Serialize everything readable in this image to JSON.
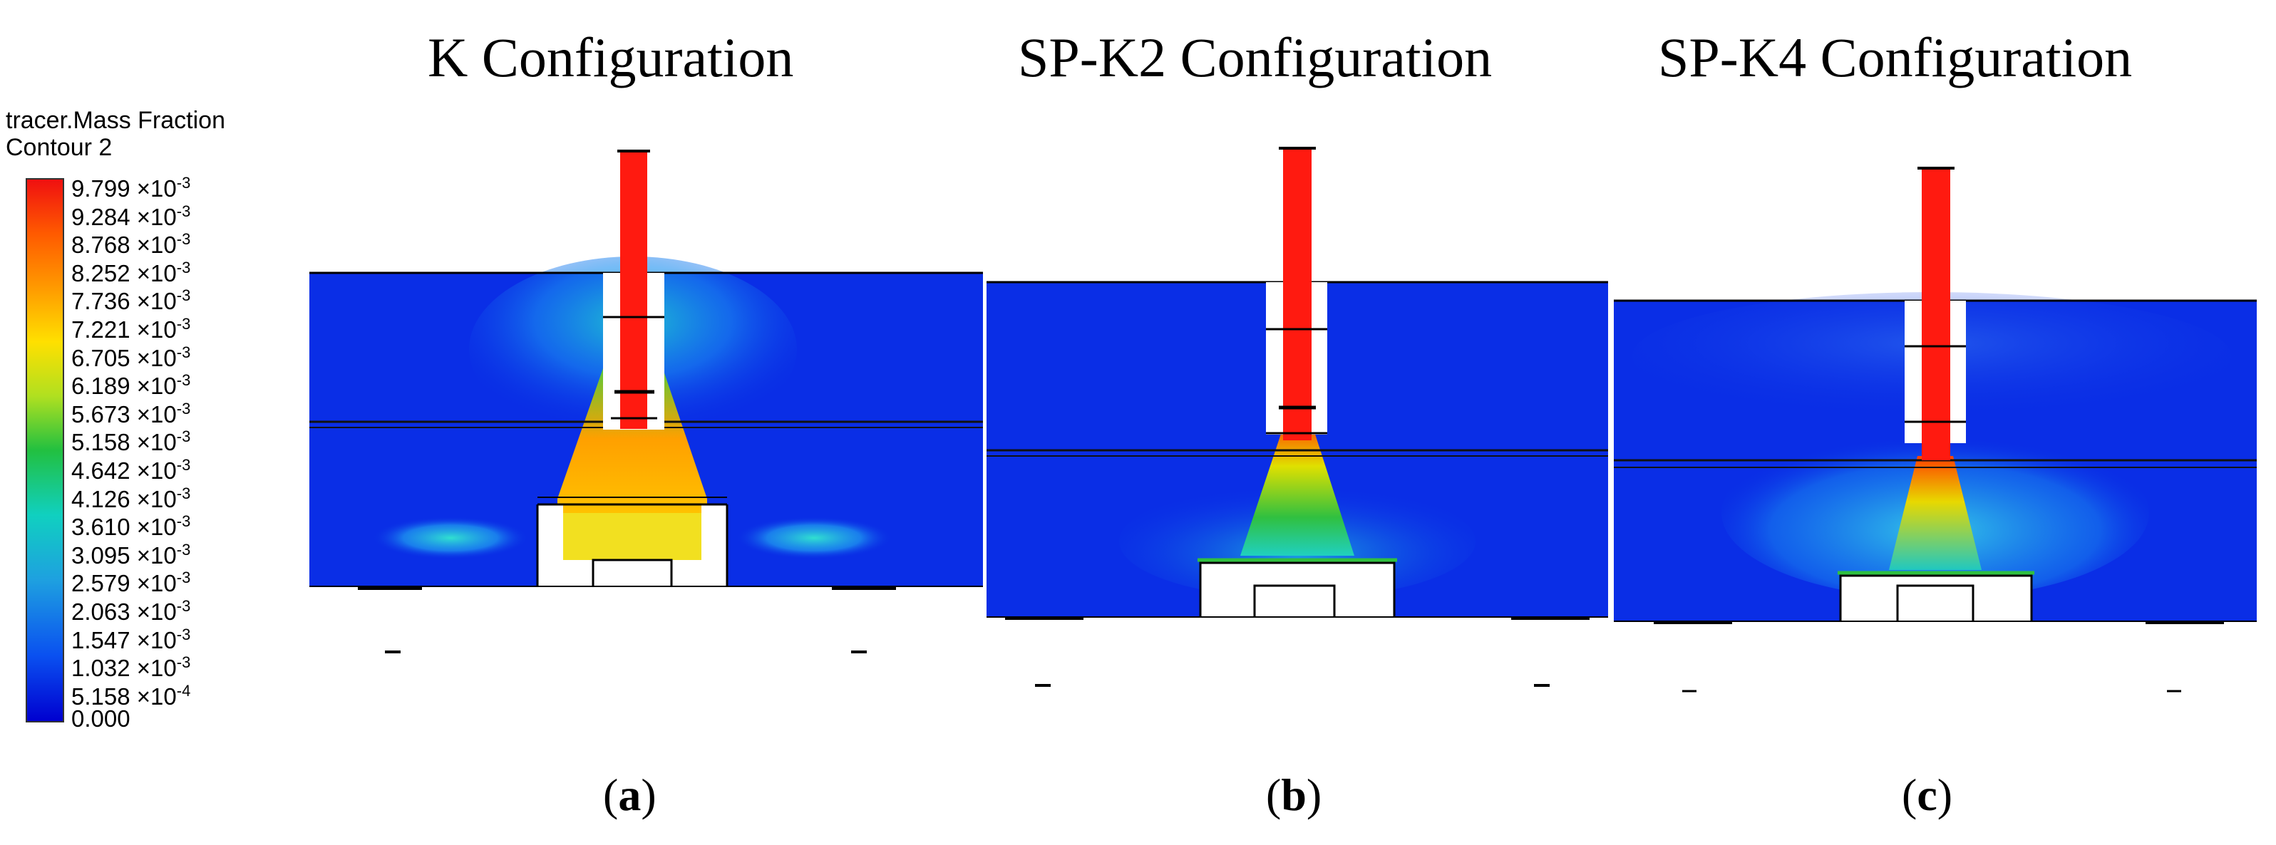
{
  "legend": {
    "title_line1": "tracer.Mass Fraction",
    "title_line2": "Contour 2",
    "ticks": [
      {
        "mant": "9.799",
        "exp": "-3"
      },
      {
        "mant": "9.284",
        "exp": "-3"
      },
      {
        "mant": "8.768",
        "exp": "-3"
      },
      {
        "mant": "8.252",
        "exp": "-3"
      },
      {
        "mant": "7.736",
        "exp": "-3"
      },
      {
        "mant": "7.221",
        "exp": "-3"
      },
      {
        "mant": "6.705",
        "exp": "-3"
      },
      {
        "mant": "6.189",
        "exp": "-3"
      },
      {
        "mant": "5.673",
        "exp": "-3"
      },
      {
        "mant": "5.158",
        "exp": "-3"
      },
      {
        "mant": "4.642",
        "exp": "-3"
      },
      {
        "mant": "4.126",
        "exp": "-3"
      },
      {
        "mant": "3.610",
        "exp": "-3"
      },
      {
        "mant": "3.095",
        "exp": "-3"
      },
      {
        "mant": "2.579",
        "exp": "-3"
      },
      {
        "mant": "2.063",
        "exp": "-3"
      },
      {
        "mant": "1.547",
        "exp": "-3"
      },
      {
        "mant": "1.032",
        "exp": "-3"
      },
      {
        "mant": "5.158",
        "exp": "-4"
      },
      {
        "mant": "0.000",
        "exp": ""
      }
    ],
    "times_sign": "×10",
    "gradient_colors": [
      "#f01010",
      "#ff9a00",
      "#ffe000",
      "#22c040",
      "#10d0c0",
      "#1ea0e0",
      "#0000d0"
    ]
  },
  "panels": [
    {
      "title": "K Configuration",
      "label_open": "(",
      "label_letter": "a",
      "label_close": ")"
    },
    {
      "title": "SP-K2 Configuration",
      "label_open": "(",
      "label_letter": "b",
      "label_close": ")"
    },
    {
      "title": "SP-K4 Configuration",
      "label_open": "(",
      "label_letter": "c",
      "label_close": ")"
    }
  ],
  "colors": {
    "background_field": "#0a2ee6",
    "jet": "#ff1a10",
    "plume_a": "#f2e020"
  }
}
